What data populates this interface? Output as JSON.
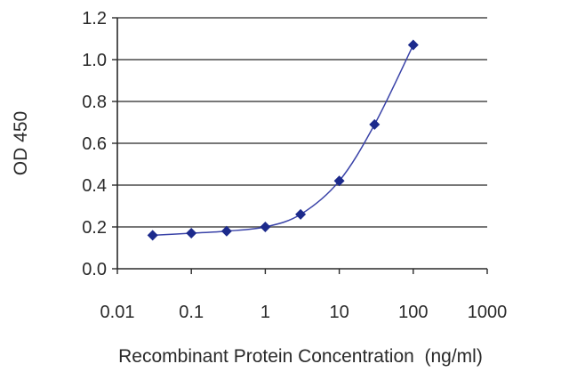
{
  "chart_data": {
    "type": "scatter",
    "title": "",
    "xlabel": "Recombinant Protein Concentration  (ng/ml)",
    "ylabel": "OD 450",
    "x_scale": "log",
    "xlim": [
      0.01,
      1000
    ],
    "ylim": [
      0.0,
      1.2
    ],
    "x_tick_labels": [
      "0.01",
      "0.1",
      "1",
      "10",
      "100",
      "1000"
    ],
    "x_tick_values": [
      0.01,
      0.1,
      1,
      10,
      100,
      1000
    ],
    "y_tick_labels": [
      "0.0",
      "0.2",
      "0.4",
      "0.6",
      "0.8",
      "1.0",
      "1.2"
    ],
    "y_tick_values": [
      0.0,
      0.2,
      0.4,
      0.6,
      0.8,
      1.0,
      1.2
    ],
    "grid": "horizontal",
    "legend": "none",
    "series": [
      {
        "x": [
          0.03,
          0.1,
          0.3,
          1,
          3,
          10,
          30,
          100
        ],
        "y": [
          0.16,
          0.17,
          0.18,
          0.2,
          0.26,
          0.42,
          0.69,
          1.07
        ],
        "marker": "diamond",
        "fit_curve": true
      }
    ],
    "colors": {
      "marker": "#1c2a8c",
      "curve": "#3a43a8",
      "grid": "#4a4a4a"
    }
  }
}
